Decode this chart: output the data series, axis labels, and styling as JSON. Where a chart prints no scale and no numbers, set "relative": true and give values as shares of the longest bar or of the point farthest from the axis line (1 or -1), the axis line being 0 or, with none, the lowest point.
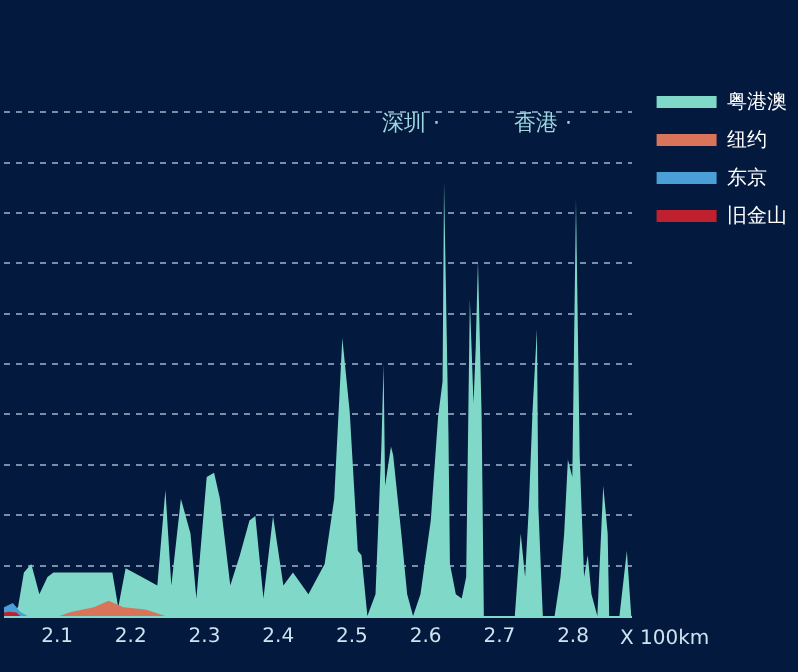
{
  "chart_data": {
    "type": "area",
    "relative": true,
    "xlabel": "X 100km",
    "xlim": [
      2.028,
      2.88
    ],
    "xticks": [
      2.1,
      2.2,
      2.3,
      2.4,
      2.5,
      2.6,
      2.7,
      2.8
    ],
    "grid": "y",
    "legend": "top right",
    "annotations": [
      "深圳 ·",
      "香港 ·"
    ],
    "series": [
      {
        "name": "粤港澳",
        "color": "#7fd8c8",
        "x": [
          2.028,
          2.047,
          2.055,
          2.065,
          2.076,
          2.087,
          2.095,
          2.135,
          2.175,
          2.183,
          2.193,
          2.215,
          2.236,
          2.247,
          2.255,
          2.268,
          2.281,
          2.289,
          2.303,
          2.313,
          2.321,
          2.335,
          2.348,
          2.361,
          2.369,
          2.38,
          2.393,
          2.407,
          2.42,
          2.441,
          2.463,
          2.476,
          2.487,
          2.497,
          2.508,
          2.513,
          2.521,
          2.532,
          2.54,
          2.543,
          2.545,
          2.553,
          2.556,
          2.567,
          2.575,
          2.583,
          2.593,
          2.607,
          2.617,
          2.623,
          2.625,
          2.631,
          2.633,
          2.641,
          2.649,
          2.655,
          2.66,
          2.665,
          2.668,
          2.671,
          2.676,
          2.679,
          2.721,
          2.729,
          2.735,
          2.74,
          2.745,
          2.751,
          2.753,
          2.759,
          2.775,
          2.783,
          2.788,
          2.793,
          2.799,
          2.804,
          2.809,
          2.815,
          2.82,
          2.825,
          2.833,
          2.841,
          2.847,
          2.849,
          2.863,
          2.873,
          2.879
        ],
        "values": [
          0,
          0.02,
          0.1,
          0.12,
          0.05,
          0.09,
          0.1,
          0.1,
          0.1,
          0.02,
          0.11,
          0.09,
          0.07,
          0.29,
          0.07,
          0.27,
          0.19,
          0.04,
          0.32,
          0.33,
          0.27,
          0.07,
          0.14,
          0.22,
          0.23,
          0.04,
          0.23,
          0.07,
          0.1,
          0.05,
          0.12,
          0.27,
          0.64,
          0.47,
          0.15,
          0.14,
          0,
          0.05,
          0.39,
          0.58,
          0.3,
          0.39,
          0.37,
          0.19,
          0.05,
          0,
          0.05,
          0.22,
          0.46,
          0.54,
          1,
          0.42,
          0.12,
          0.05,
          0.04,
          0.09,
          0.73,
          0.49,
          0.62,
          0.82,
          0.46,
          0,
          0,
          0.19,
          0.09,
          0.25,
          0.47,
          0.66,
          0.25,
          0,
          0,
          0.09,
          0.19,
          0.36,
          0.32,
          0.96,
          0.37,
          0.09,
          0.14,
          0.05,
          0,
          0.3,
          0.19,
          0,
          0,
          0.15,
          0
        ]
      },
      {
        "name": "纽约",
        "color": "#d9735a",
        "x": [
          2.103,
          2.12,
          2.15,
          2.17,
          2.19,
          2.22,
          2.247
        ],
        "values": [
          0,
          0.01,
          0.02,
          0.035,
          0.02,
          0.015,
          0
        ]
      },
      {
        "name": "东京",
        "color": "#4a9fd6",
        "x": [
          2.028,
          2.04,
          2.05,
          2.06
        ],
        "values": [
          0.02,
          0.03,
          0.01,
          0
        ]
      },
      {
        "name": "旧金山",
        "color": "#c0202e",
        "x": [
          2.028,
          2.035,
          2.045,
          2.05
        ],
        "values": [
          0.008,
          0.01,
          0.008,
          0
        ]
      }
    ]
  }
}
